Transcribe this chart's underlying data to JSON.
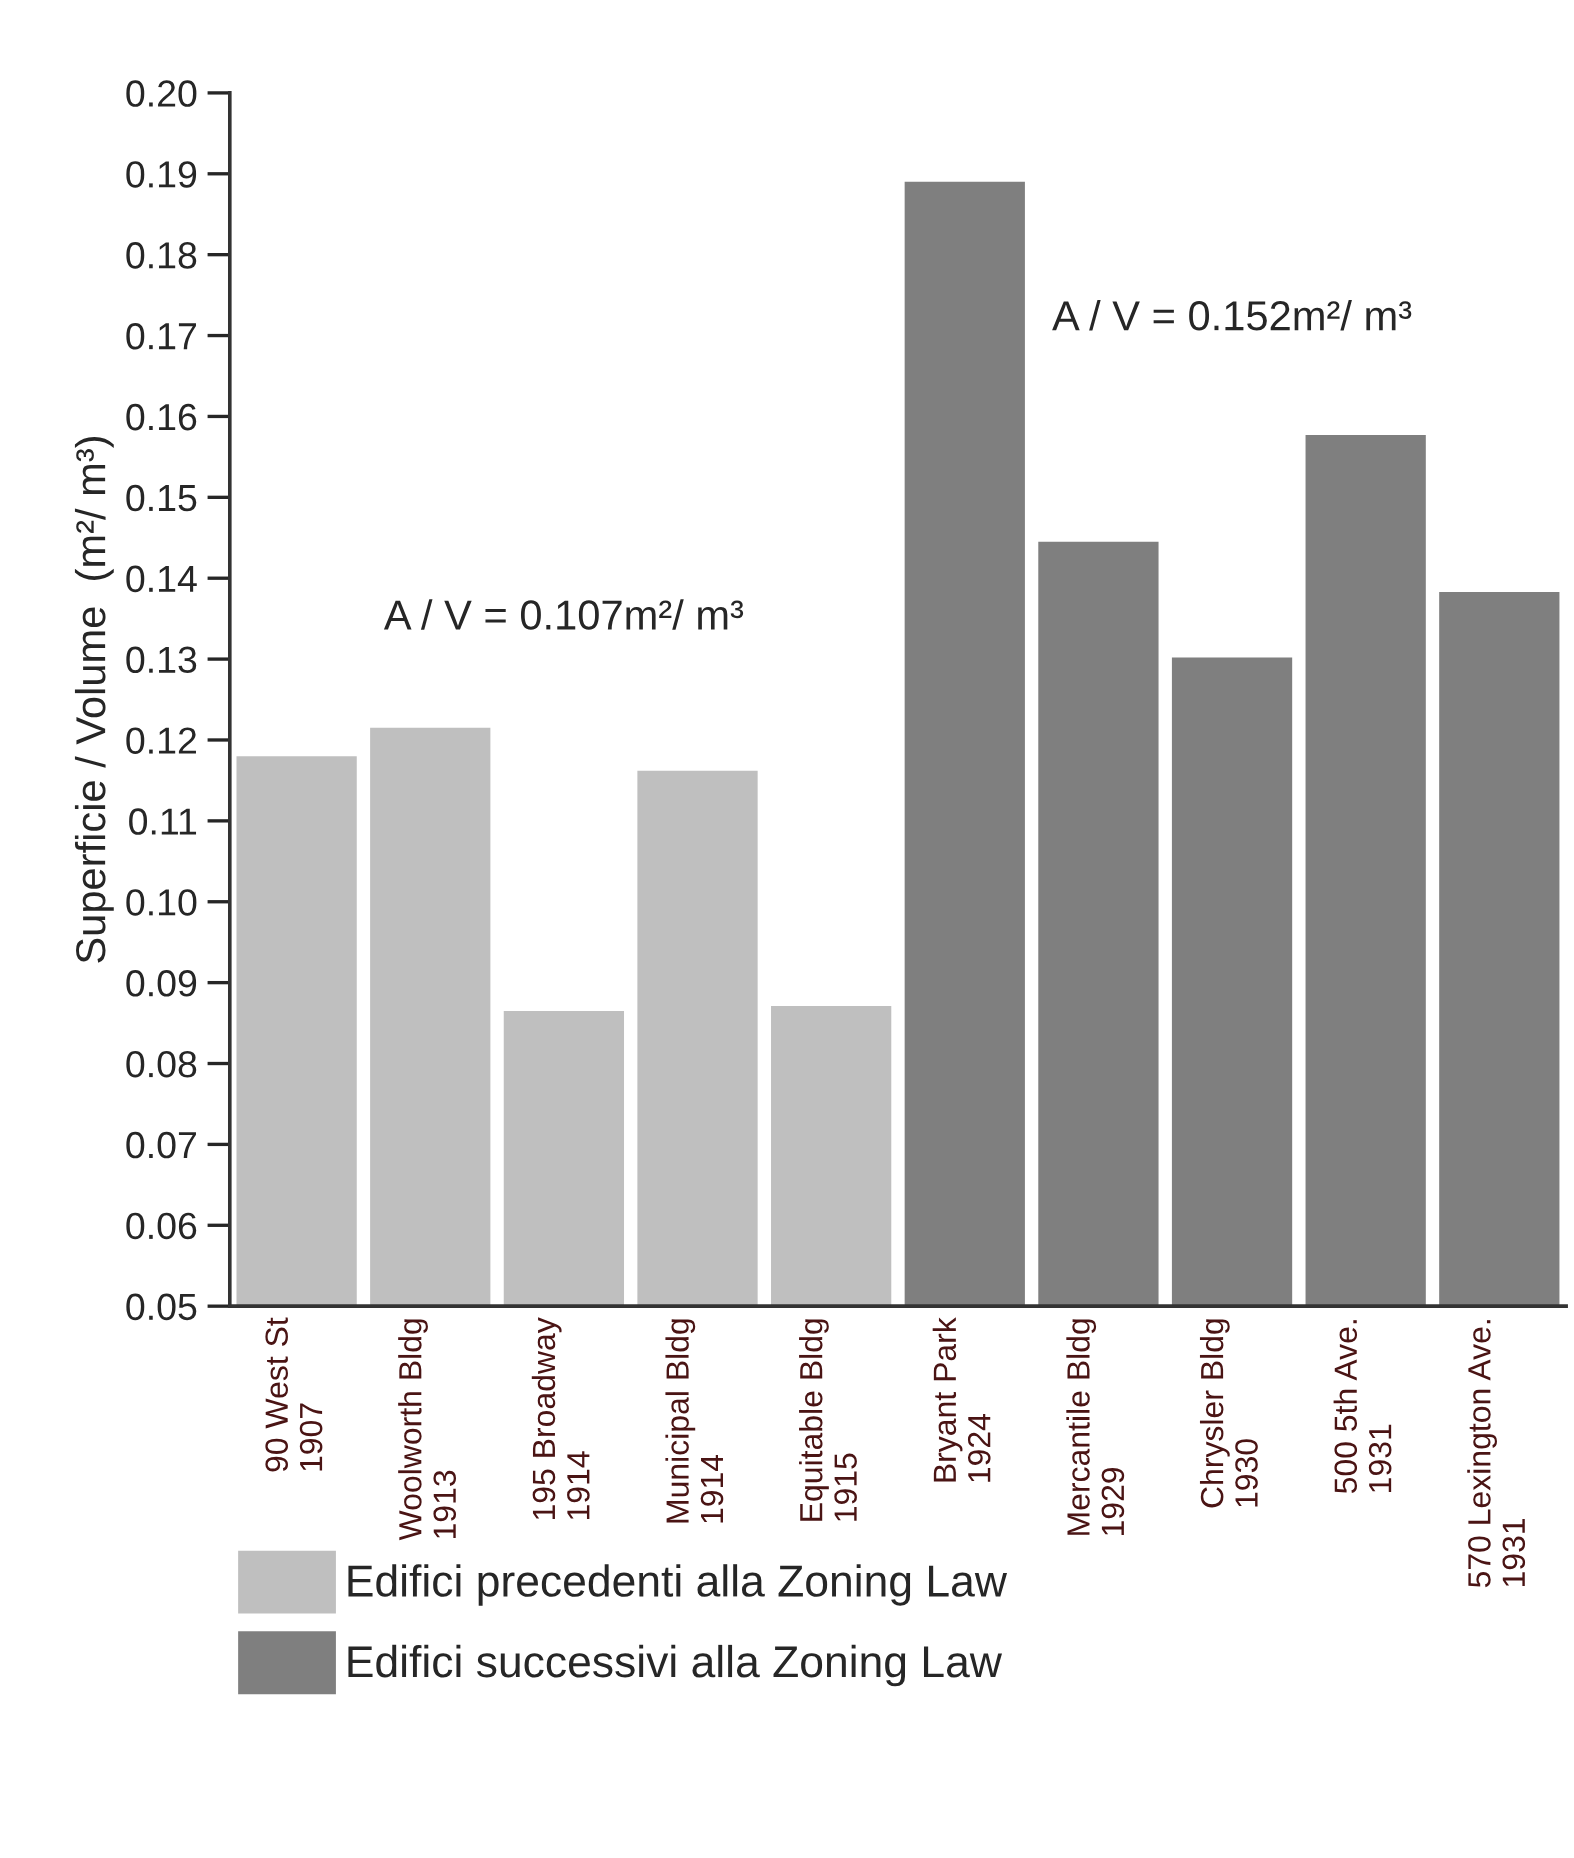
{
  "chart_data": {
    "type": "bar",
    "ylabel": "Superficie / Volume  (m²/ m³)",
    "categories": [
      "90 West St\n1907",
      "Woolworth Bldg\n1913",
      "195 Broadway\n1914",
      "Municipal Bldg\n1914",
      "Equitable Bldg\n1915",
      "Bryant Park\n1924",
      "Mercantile Bldg\n1929",
      "Chrysler Bldg\n1930",
      "500 5th Ave.\n1931",
      "570 Lexington Ave.\n1931"
    ],
    "series": [
      {
        "name": "Edifici precedenti alla Zoning Law",
        "color": "#bfbfbf",
        "values": [
          0.118,
          0.1215,
          0.0865,
          0.1162,
          0.0871,
          null,
          null,
          null,
          null,
          null
        ]
      },
      {
        "name": "Edifici successivi alla Zoning Law",
        "color": "#7f7f7f",
        "values": [
          null,
          null,
          null,
          null,
          null,
          0.189,
          0.1445,
          0.1302,
          0.1577,
          0.1383
        ]
      }
    ],
    "ylim": [
      0.05,
      0.2
    ],
    "yticks": [
      {
        "value": 0.05,
        "label": "0.05"
      },
      {
        "value": 0.06,
        "label": "0.06"
      },
      {
        "value": 0.07,
        "label": "0.07"
      },
      {
        "value": 0.08,
        "label": "0.08"
      },
      {
        "value": 0.09,
        "label": "0.09"
      },
      {
        "value": 0.1,
        "label": "0.10"
      },
      {
        "value": 0.11,
        "label": "0.11"
      },
      {
        "value": 0.12,
        "label": "0.12"
      },
      {
        "value": 0.13,
        "label": "0.13"
      },
      {
        "value": 0.14,
        "label": "0.14"
      },
      {
        "value": 0.15,
        "label": "0.15"
      },
      {
        "value": 0.16,
        "label": "0.16"
      },
      {
        "value": 0.17,
        "label": "0.17"
      },
      {
        "value": 0.18,
        "label": "0.18"
      },
      {
        "value": 0.19,
        "label": "0.19"
      },
      {
        "value": 0.2,
        "label": "0.20"
      }
    ],
    "annotations": [
      "A / V = 0.107m²/ m³",
      "A / V = 0.152m²/ m³"
    ],
    "legend": "bottom",
    "grid": false
  }
}
